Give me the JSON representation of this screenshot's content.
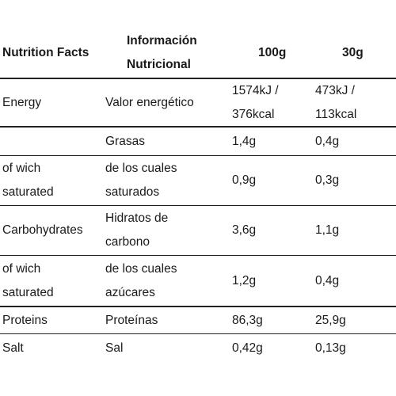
{
  "header": {
    "col1": "Nutrition Facts",
    "col2_line1": "Información",
    "col2_line2": "Nutricional",
    "col3": "100g",
    "col4": "30g"
  },
  "rows": [
    {
      "en": [
        "Energy"
      ],
      "es": [
        "Valor energético"
      ],
      "per100": [
        "1574kJ /",
        "376kcal"
      ],
      "per30": [
        "473kJ /",
        "113kcal"
      ]
    },
    {
      "en": [],
      "es": [
        "Grasas"
      ],
      "per100": [
        "1,4g"
      ],
      "per30": [
        "0,4g"
      ]
    },
    {
      "en": [
        "of wich",
        "saturated"
      ],
      "es": [
        "de los cuales",
        "saturados"
      ],
      "per100": [
        "0,9g"
      ],
      "per30": [
        "0,3g"
      ]
    },
    {
      "en": [
        "Carbohydrates"
      ],
      "es": [
        "Hidratos de",
        "carbono"
      ],
      "per100": [
        "3,6g"
      ],
      "per30": [
        "1,1g"
      ]
    },
    {
      "en": [
        "of wich",
        "saturated"
      ],
      "es": [
        "de los cuales",
        "azúcares"
      ],
      "per100": [
        "1,2g"
      ],
      "per30": [
        "0,4g"
      ]
    },
    {
      "en": [
        "Proteins"
      ],
      "es": [
        "Proteínas"
      ],
      "per100": [
        "86,3g"
      ],
      "per30": [
        "25,9g"
      ]
    },
    {
      "en": [
        "Salt"
      ],
      "es": [
        "Sal"
      ],
      "per100": [
        "0,42g"
      ],
      "per30": [
        "0,13g"
      ]
    }
  ]
}
